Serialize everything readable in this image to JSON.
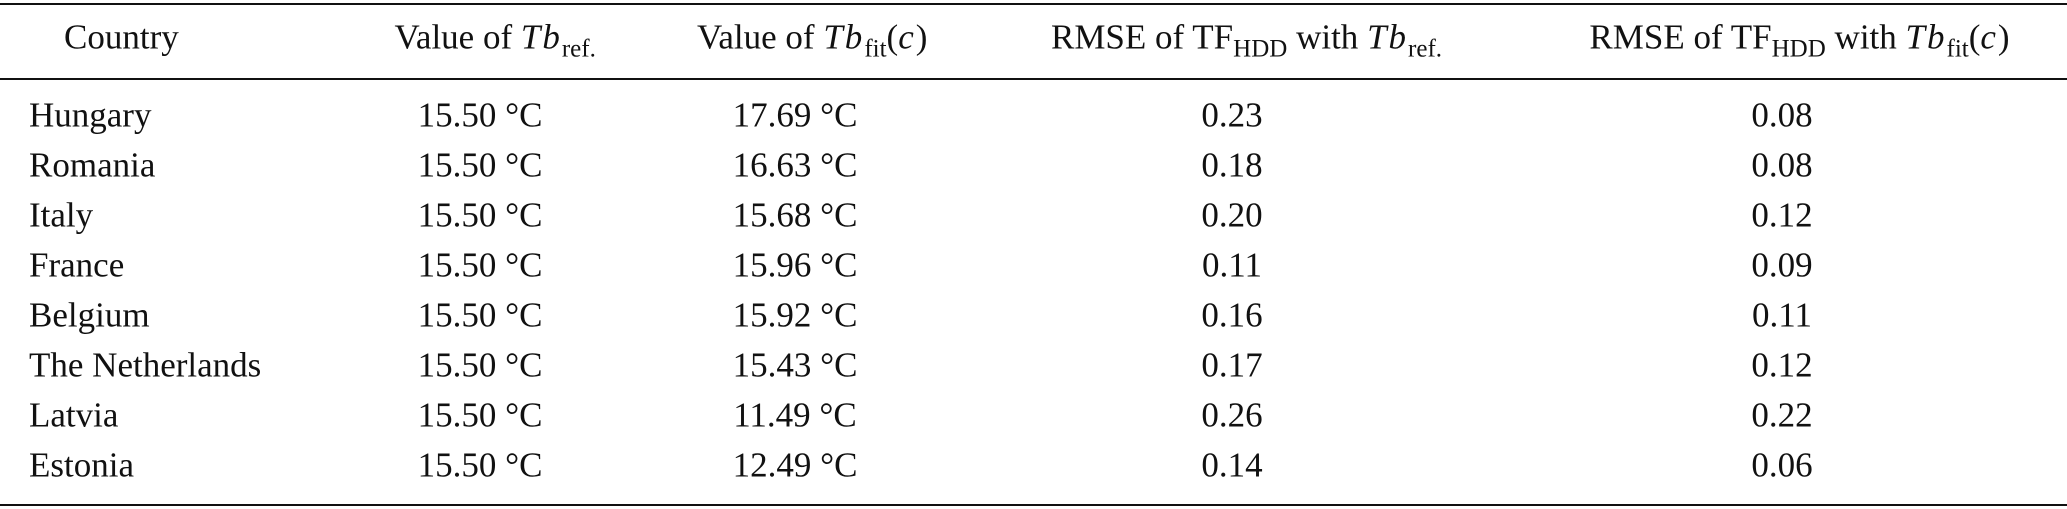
{
  "table": {
    "header": [
      [
        "Country"
      ],
      [
        "Value of ",
        "Tb",
        "ref."
      ],
      [
        "Value of ",
        "Tb",
        "fit",
        "(",
        "c",
        ")"
      ],
      [
        "RMSE of TF",
        "HDD",
        " with ",
        "Tb",
        "ref."
      ],
      [
        "RMSE of TF",
        "HDD",
        " with ",
        "Tb",
        "fit",
        "(",
        "c",
        ")"
      ]
    ],
    "rows": [
      [
        "Hungary",
        "15.50 °C",
        "17.69 °C",
        "0.23",
        "0.08"
      ],
      [
        "Romania",
        "15.50 °C",
        "16.63 °C",
        "0.18",
        "0.08"
      ],
      [
        "Italy",
        "15.50 °C",
        "15.68 °C",
        "0.20",
        "0.12"
      ],
      [
        "France",
        "15.50 °C",
        "15.96 °C",
        "0.11",
        "0.09"
      ],
      [
        "Belgium",
        "15.50 °C",
        "15.92 °C",
        "0.16",
        "0.11"
      ],
      [
        "The Netherlands",
        "15.50 °C",
        "15.43 °C",
        "0.17",
        "0.12"
      ],
      [
        "Latvia",
        "15.50 °C",
        "11.49 °C",
        "0.26",
        "0.22"
      ],
      [
        "Estonia",
        "15.50 °C",
        "12.49 °C",
        "0.14",
        "0.06"
      ]
    ]
  }
}
